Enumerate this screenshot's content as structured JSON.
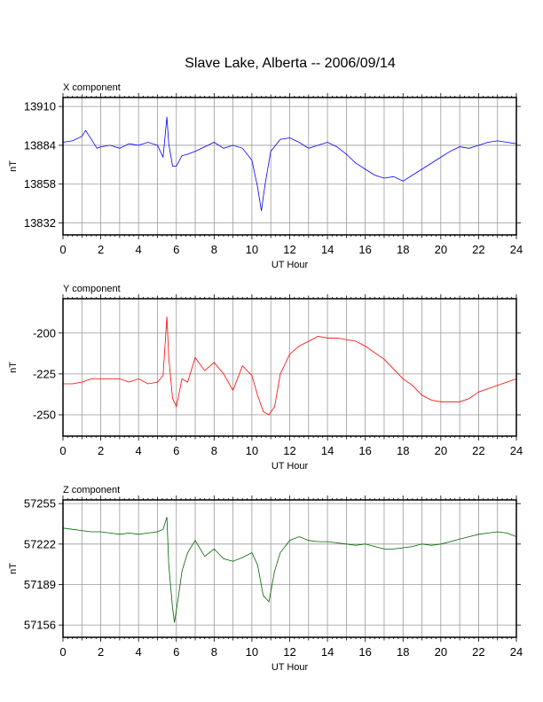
{
  "title": "Slave Lake, Alberta -- 2006/09/14",
  "chart_data": [
    {
      "type": "line",
      "panel_title": "X component",
      "xlabel": "UT Hour",
      "ylabel": "nT",
      "xlim": [
        0,
        24
      ],
      "ylim": [
        13824,
        13916
      ],
      "xticks": [
        0,
        2,
        4,
        6,
        8,
        10,
        12,
        14,
        16,
        18,
        20,
        22,
        24
      ],
      "yticks": [
        13832,
        13858,
        13884,
        13910
      ],
      "grid": true,
      "color": "#0000ff",
      "x": [
        0,
        0.5,
        1.0,
        1.2,
        1.5,
        1.8,
        2.0,
        2.5,
        3.0,
        3.5,
        4.0,
        4.5,
        5.0,
        5.3,
        5.5,
        5.6,
        5.8,
        6.0,
        6.3,
        6.6,
        7.0,
        7.5,
        8.0,
        8.5,
        9.0,
        9.5,
        10.0,
        10.3,
        10.5,
        10.7,
        11.0,
        11.5,
        12.0,
        12.5,
        13.0,
        13.5,
        14.0,
        14.5,
        15.0,
        15.5,
        16.0,
        16.5,
        17.0,
        17.5,
        18.0,
        18.5,
        19.0,
        19.5,
        20.0,
        20.5,
        21.0,
        21.5,
        22.0,
        22.5,
        23.0,
        23.5,
        24.0
      ],
      "y": [
        13886,
        13887,
        13890,
        13894,
        13888,
        13882,
        13883,
        13884,
        13882,
        13885,
        13884,
        13886,
        13884,
        13876,
        13903,
        13885,
        13870,
        13870,
        13877,
        13878,
        13880,
        13883,
        13886,
        13882,
        13884,
        13882,
        13874,
        13856,
        13840,
        13858,
        13880,
        13888,
        13889,
        13886,
        13882,
        13884,
        13886,
        13883,
        13878,
        13872,
        13868,
        13864,
        13862,
        13863,
        13860,
        13864,
        13868,
        13872,
        13876,
        13880,
        13883,
        13882,
        13884,
        13886,
        13887,
        13886,
        13885
      ]
    },
    {
      "type": "line",
      "panel_title": "Y component",
      "xlabel": "UT Hour",
      "ylabel": "nT",
      "xlim": [
        0,
        24
      ],
      "ylim": [
        -263,
        -179
      ],
      "xticks": [
        0,
        2,
        4,
        6,
        8,
        10,
        12,
        14,
        16,
        18,
        20,
        22,
        24
      ],
      "yticks": [
        -200,
        -225,
        -250
      ],
      "grid": true,
      "color": "#ff0000",
      "x": [
        0,
        0.5,
        1.0,
        1.5,
        2.0,
        2.5,
        3.0,
        3.5,
        4.0,
        4.5,
        5.0,
        5.3,
        5.5,
        5.6,
        5.8,
        6.0,
        6.3,
        6.6,
        7.0,
        7.5,
        8.0,
        8.5,
        9.0,
        9.5,
        10.0,
        10.3,
        10.6,
        10.9,
        11.2,
        11.5,
        12.0,
        12.5,
        13.0,
        13.5,
        14.0,
        14.5,
        15.0,
        15.5,
        16.0,
        16.5,
        17.0,
        17.5,
        18.0,
        18.5,
        19.0,
        19.5,
        20.0,
        20.5,
        21.0,
        21.5,
        22.0,
        22.5,
        23.0,
        23.5,
        24.0
      ],
      "y": [
        -231,
        -231,
        -230,
        -228,
        -228,
        -228,
        -228,
        -230,
        -228,
        -231,
        -230,
        -226,
        -190,
        -215,
        -240,
        -245,
        -228,
        -230,
        -215,
        -223,
        -218,
        -225,
        -235,
        -220,
        -226,
        -238,
        -248,
        -250,
        -245,
        -225,
        -213,
        -208,
        -205,
        -202,
        -203,
        -203,
        -204,
        -205,
        -208,
        -212,
        -216,
        -222,
        -228,
        -232,
        -238,
        -241,
        -242,
        -242,
        -242,
        -240,
        -236,
        -234,
        -232,
        -230,
        -228
      ]
    },
    {
      "type": "line",
      "panel_title": "Z component",
      "xlabel": "UT Hour",
      "ylabel": "nT",
      "xlim": [
        0,
        24
      ],
      "ylim": [
        57146,
        57258
      ],
      "xticks": [
        0,
        2,
        4,
        6,
        8,
        10,
        12,
        14,
        16,
        18,
        20,
        22,
        24
      ],
      "yticks": [
        57156,
        57189,
        57222,
        57255
      ],
      "grid": true,
      "color": "#006400",
      "x": [
        0,
        0.5,
        1.0,
        1.5,
        2.0,
        2.5,
        3.0,
        3.5,
        4.0,
        4.5,
        5.0,
        5.3,
        5.5,
        5.6,
        5.8,
        5.9,
        6.1,
        6.3,
        6.6,
        7.0,
        7.5,
        8.0,
        8.5,
        9.0,
        9.5,
        10.0,
        10.3,
        10.6,
        10.9,
        11.2,
        11.5,
        12.0,
        12.5,
        13.0,
        13.5,
        14.0,
        14.5,
        15.0,
        15.5,
        16.0,
        16.5,
        17.0,
        17.5,
        18.0,
        18.5,
        19.0,
        19.5,
        20.0,
        20.5,
        21.0,
        21.5,
        22.0,
        22.5,
        23.0,
        23.5,
        24.0
      ],
      "y": [
        57235,
        57234,
        57233,
        57232,
        57232,
        57231,
        57230,
        57231,
        57230,
        57231,
        57232,
        57234,
        57244,
        57205,
        57170,
        57158,
        57178,
        57200,
        57215,
        57225,
        57212,
        57218,
        57210,
        57208,
        57211,
        57215,
        57205,
        57180,
        57175,
        57200,
        57215,
        57225,
        57228,
        57225,
        57224,
        57224,
        57223,
        57222,
        57221,
        57222,
        57220,
        57218,
        57218,
        57219,
        57220,
        57222,
        57221,
        57222,
        57224,
        57226,
        57228,
        57230,
        57231,
        57232,
        57231,
        57228
      ]
    }
  ]
}
